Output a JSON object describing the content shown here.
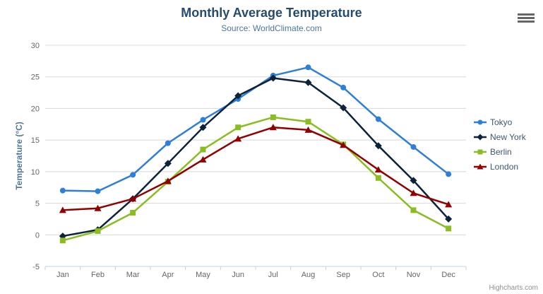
{
  "credits": "Highcharts.com",
  "export_menu_icon": "hamburger",
  "colors": {
    "title": "#274b6d",
    "subtitle": "#4d759e",
    "axis_title": "#4d759e",
    "tick_label": "#666666",
    "gridline": "#D8D8D8",
    "axis_line": "#C0D0E0",
    "legend_text": "#3E576F",
    "credits_text": "#909090"
  },
  "chart_data": {
    "type": "line",
    "title": "Monthly Average Temperature",
    "subtitle": "Source: WorldClimate.com",
    "categories": [
      "Jan",
      "Feb",
      "Mar",
      "Apr",
      "May",
      "Jun",
      "Jul",
      "Aug",
      "Sep",
      "Oct",
      "Nov",
      "Dec"
    ],
    "xlabel": "",
    "ylabel": "Temperature (°C)",
    "ylim": [
      -5,
      30
    ],
    "ytick_step": 5,
    "grid": true,
    "legend_position": "right",
    "series": [
      {
        "name": "Tokyo",
        "color": "#2f7ed8",
        "marker": "circle",
        "values": [
          7.0,
          6.9,
          9.5,
          14.5,
          18.2,
          21.5,
          25.2,
          26.5,
          23.3,
          18.3,
          13.9,
          9.6
        ]
      },
      {
        "name": "New York",
        "color": "#0d233a",
        "marker": "diamond",
        "values": [
          -0.2,
          0.8,
          5.7,
          11.3,
          17.0,
          22.0,
          24.8,
          24.1,
          20.1,
          14.1,
          8.6,
          2.5
        ]
      },
      {
        "name": "Berlin",
        "color": "#8bbc21",
        "marker": "square",
        "values": [
          -0.9,
          0.6,
          3.5,
          8.4,
          13.5,
          17.0,
          18.6,
          17.9,
          14.3,
          9.0,
          3.9,
          1.0
        ]
      },
      {
        "name": "London",
        "color": "#910000",
        "marker": "triangle",
        "values": [
          3.9,
          4.2,
          5.7,
          8.5,
          11.9,
          15.2,
          17.0,
          16.6,
          14.2,
          10.3,
          6.6,
          4.8
        ]
      }
    ]
  }
}
